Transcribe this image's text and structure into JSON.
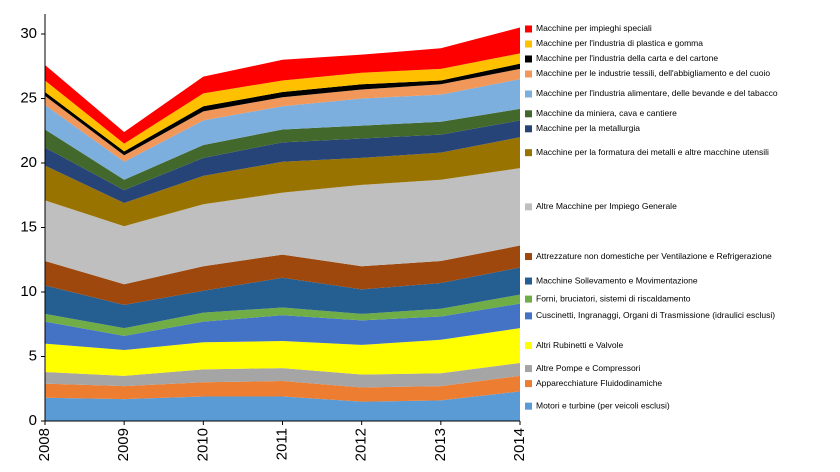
{
  "chart_data": {
    "type": "stacked-area",
    "x": [
      2008,
      2009,
      2010,
      2011,
      2012,
      2013,
      2014
    ],
    "ylim": [
      0,
      30
    ],
    "yticks": [
      0,
      5,
      10,
      15,
      20,
      25,
      30
    ],
    "grid": false,
    "series": [
      {
        "name": "Motori e turbine (per veicoli esclusi)",
        "color": "#5b9bd5",
        "values": [
          1.8,
          1.7,
          1.9,
          1.9,
          1.5,
          1.6,
          2.3
        ]
      },
      {
        "name": "Apparecchiature Fluidodinamiche",
        "color": "#ed7d31",
        "values": [
          1.1,
          1.0,
          1.1,
          1.2,
          1.1,
          1.1,
          1.2
        ]
      },
      {
        "name": "Altre Pompe e Compressori",
        "color": "#a5a5a5",
        "values": [
          0.9,
          0.8,
          1.0,
          1.0,
          1.0,
          1.0,
          1.0
        ]
      },
      {
        "name": "Altri Rubinetti e Valvole",
        "color": "#ffff00",
        "values": [
          2.2,
          2.0,
          2.1,
          2.1,
          2.3,
          2.6,
          2.7
        ]
      },
      {
        "name": "Cuscinetti, Ingranaggi, Organi di Trasmissione (idraulici esclusi)",
        "color": "#4472c4",
        "values": [
          1.7,
          1.1,
          1.6,
          2.0,
          1.9,
          1.8,
          1.9
        ]
      },
      {
        "name": "Forni, bruciatori, sistemi di riscaldamento",
        "color": "#70ad47",
        "values": [
          0.6,
          0.6,
          0.7,
          0.6,
          0.5,
          0.6,
          0.7
        ]
      },
      {
        "name": "Macchine Sollevamento e Movimentazione",
        "color": "#255e91",
        "values": [
          2.2,
          1.8,
          1.7,
          2.3,
          1.9,
          2.0,
          2.1
        ]
      },
      {
        "name": "Attrezzature non domestiche per Ventilazione e Refrigerazione",
        "color": "#9e480e",
        "values": [
          1.9,
          1.6,
          1.9,
          1.8,
          1.8,
          1.7,
          1.7
        ]
      },
      {
        "name": "Altre Macchine per Impiego Generale",
        "color": "#bfbfbf",
        "values": [
          4.7,
          4.5,
          4.8,
          4.8,
          6.3,
          6.3,
          6.0
        ]
      },
      {
        "name": "Macchine per la formatura dei metalli e altre macchine utensili",
        "color": "#997300",
        "values": [
          2.7,
          1.8,
          2.2,
          2.4,
          2.1,
          2.1,
          2.4
        ]
      },
      {
        "name": "Macchine per la metallurgia",
        "color": "#264478",
        "values": [
          1.4,
          1.0,
          1.4,
          1.5,
          1.5,
          1.4,
          1.3
        ]
      },
      {
        "name": "Macchine da miniera, cava e cantiere",
        "color": "#43682b",
        "values": [
          1.4,
          0.8,
          1.0,
          1.0,
          1.0,
          1.0,
          0.9
        ]
      },
      {
        "name": "Macchine per l'industria alimentare, delle bevande e del tabacco",
        "color": "#7cafdd",
        "values": [
          1.9,
          1.4,
          1.9,
          1.8,
          2.1,
          2.1,
          2.3
        ]
      },
      {
        "name": "Macchine per le industrie tessili, dell'abbigliamento e del cuoio",
        "color": "#f1975a",
        "values": [
          0.7,
          0.5,
          0.7,
          0.7,
          0.7,
          0.8,
          0.8
        ]
      },
      {
        "name": "Macchine per l'industria della carta e del cartone",
        "color": "#000000",
        "values": [
          0.3,
          0.3,
          0.4,
          0.4,
          0.4,
          0.3,
          0.4
        ]
      },
      {
        "name": "Macchine per l'industria di plastica e gomma",
        "color": "#ffc000",
        "values": [
          0.9,
          0.6,
          1.0,
          0.9,
          0.9,
          0.9,
          0.8
        ]
      },
      {
        "name": "Macchine per impieghi speciali",
        "color": "#ff0000",
        "values": [
          1.2,
          0.9,
          1.3,
          1.6,
          1.4,
          1.6,
          2.0
        ]
      }
    ]
  }
}
